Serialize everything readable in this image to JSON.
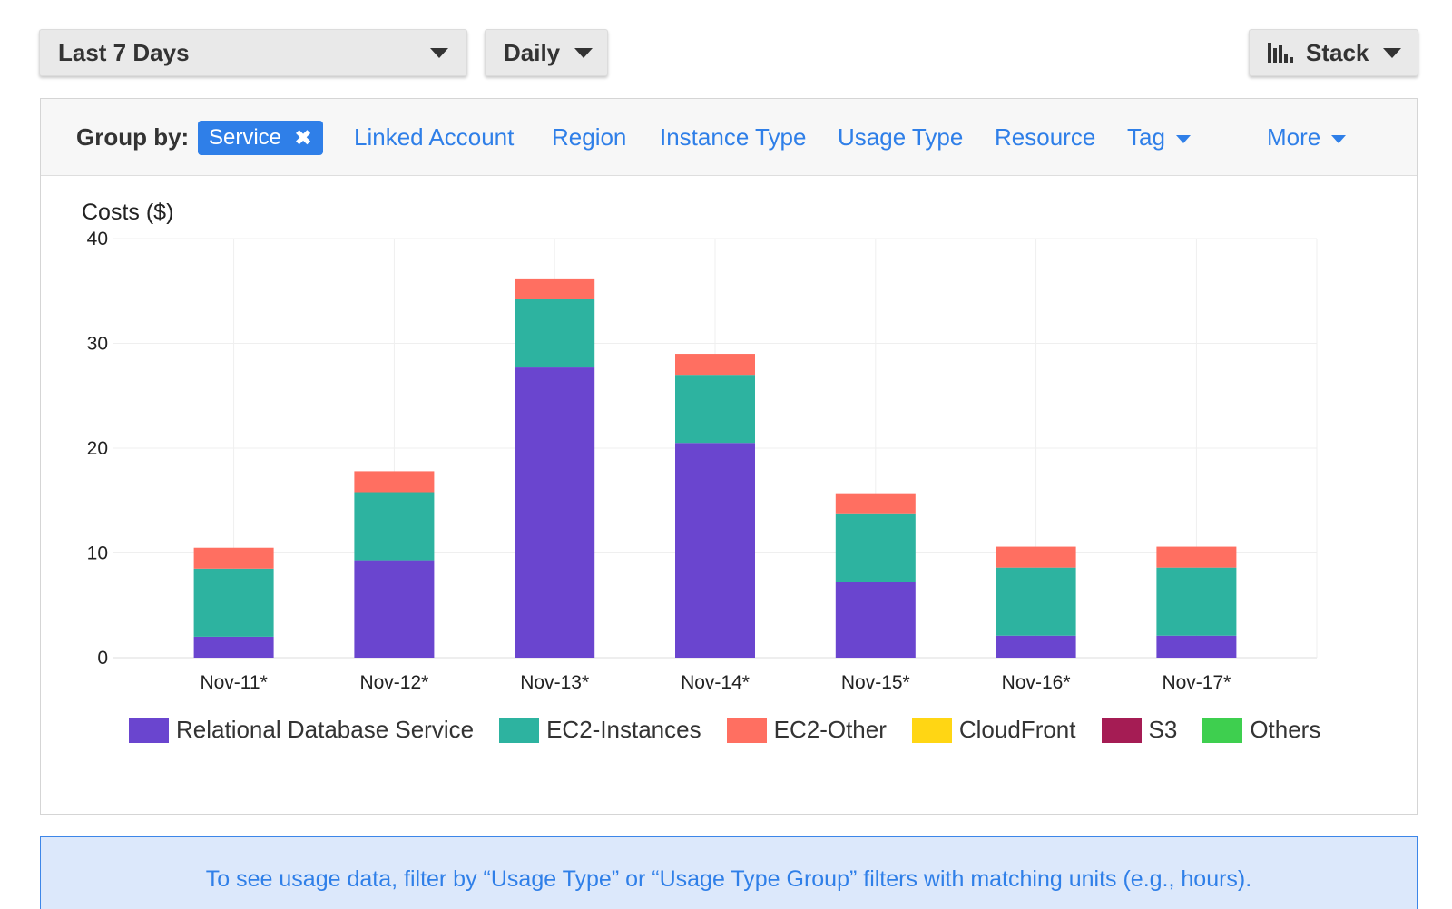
{
  "controls": {
    "date_range": "Last 7 Days",
    "granularity": "Daily",
    "chart_style": "Stack"
  },
  "group_by": {
    "label": "Group by:",
    "selected": "Service",
    "options": [
      "Linked Account",
      "Region",
      "Instance Type",
      "Usage Type",
      "Resource",
      "Tag"
    ],
    "more": "More"
  },
  "colors": {
    "accent": "#2f7fe8",
    "rds": "#6a45cf",
    "ec2_instances": "#2db3a0",
    "ec2_other": "#ff6f61",
    "cloudfront": "#ffd614",
    "s3": "#a51c54",
    "others": "#3ecf4f"
  },
  "chart_data": {
    "type": "bar",
    "stacked": true,
    "ylabel": "Costs ($)",
    "ylim": [
      0,
      40
    ],
    "yticks": [
      0,
      10,
      20,
      30,
      40
    ],
    "grid": true,
    "legend_position": "bottom",
    "categories": [
      "Nov-11*",
      "Nov-12*",
      "Nov-13*",
      "Nov-14*",
      "Nov-15*",
      "Nov-16*",
      "Nov-17*"
    ],
    "series": [
      {
        "name": "Relational Database Service",
        "color": "#6a45cf",
        "values": [
          2.0,
          9.3,
          27.7,
          20.5,
          7.2,
          2.1,
          2.1
        ]
      },
      {
        "name": "EC2-Instances",
        "color": "#2db3a0",
        "values": [
          6.5,
          6.5,
          6.5,
          6.5,
          6.5,
          6.5,
          6.5
        ]
      },
      {
        "name": "EC2-Other",
        "color": "#ff6f61",
        "values": [
          2.0,
          2.0,
          2.0,
          2.0,
          2.0,
          2.0,
          2.0
        ]
      },
      {
        "name": "CloudFront",
        "color": "#ffd614",
        "values": [
          0,
          0,
          0,
          0,
          0,
          0,
          0
        ]
      },
      {
        "name": "S3",
        "color": "#a51c54",
        "values": [
          0,
          0,
          0,
          0,
          0,
          0,
          0
        ]
      },
      {
        "name": "Others",
        "color": "#3ecf4f",
        "values": [
          0,
          0,
          0,
          0,
          0,
          0,
          0
        ]
      }
    ]
  },
  "info_banner": "To see usage data, filter by “Usage Type” or “Usage Type Group” filters with matching units (e.g., hours)."
}
